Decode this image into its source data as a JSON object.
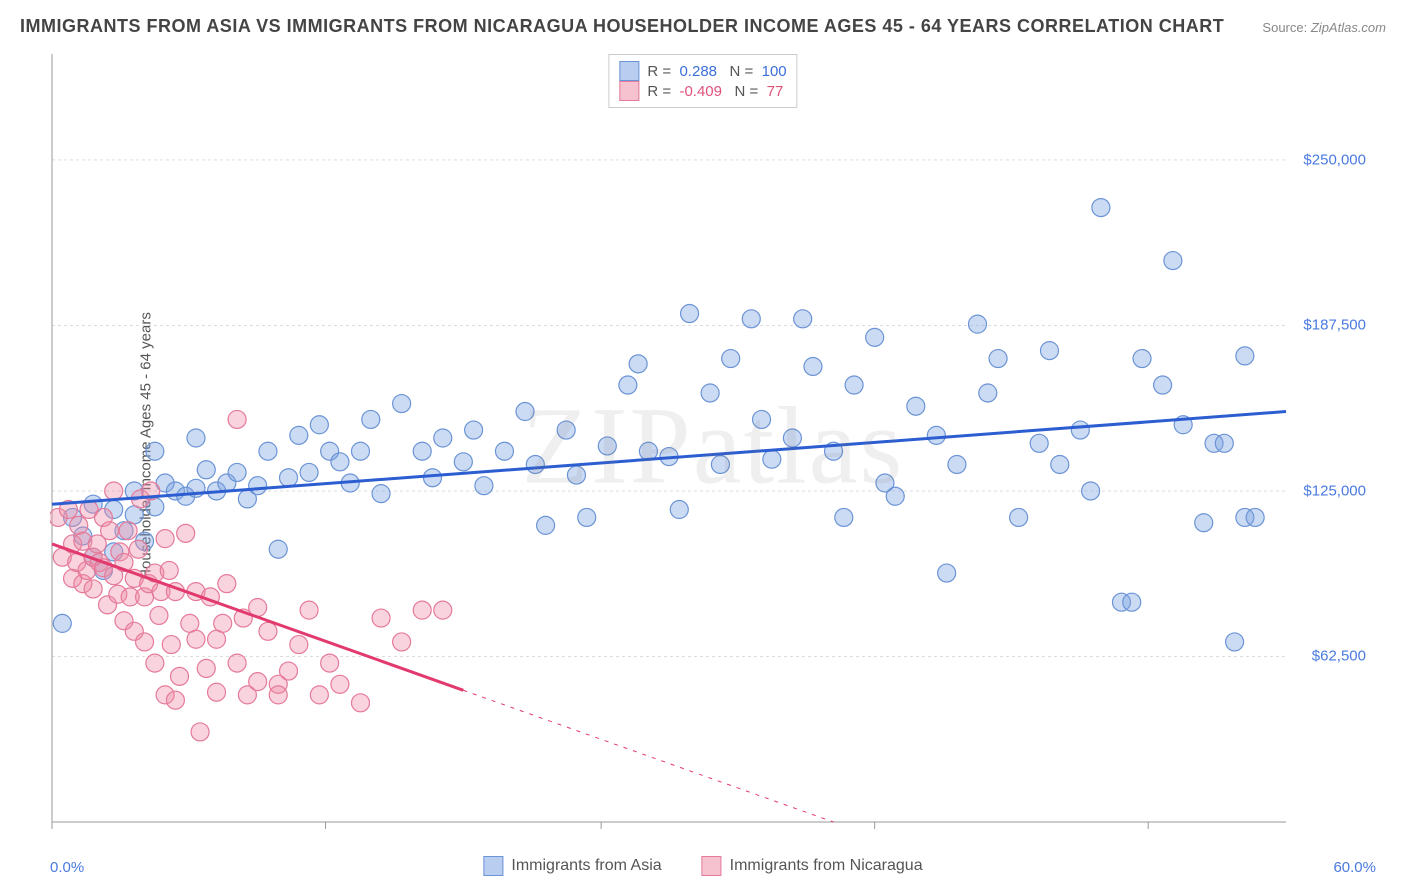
{
  "title": "IMMIGRANTS FROM ASIA VS IMMIGRANTS FROM NICARAGUA HOUSEHOLDER INCOME AGES 45 - 64 YEARS CORRELATION CHART",
  "source_label": "Source:",
  "source_value": "ZipAtlas.com",
  "watermark": "ZIPatlas",
  "ylabel": "Householder Income Ages 45 - 64 years",
  "chart": {
    "type": "scatter",
    "xlim": [
      0,
      60
    ],
    "ylim": [
      0,
      290000
    ],
    "x_min_label": "0.0%",
    "x_max_label": "60.0%",
    "x_ticks": [
      0,
      13.3,
      26.7,
      40,
      53.3
    ],
    "y_ticks": [
      62500,
      125000,
      187500,
      250000
    ],
    "y_tick_labels": [
      "$62,500",
      "$125,000",
      "$187,500",
      "$250,000"
    ],
    "background_color": "#ffffff",
    "grid_color": "#dddddd",
    "axis_color": "#999999",
    "axis_label_color": "#4a7ae0",
    "marker_radius": 9,
    "marker_stroke_width": 1.2,
    "trend_line_width": 3,
    "series": [
      {
        "name": "Immigrants from Asia",
        "fill_color": "rgba(120,160,225,0.38)",
        "stroke_color": "#6b94d6",
        "swatch_fill": "#b8cdef",
        "swatch_stroke": "#6b94d6",
        "R": "0.288",
        "N": "100",
        "stat_color": "#3b6fd9",
        "trend_color": "#2c5ed1",
        "trend": {
          "x1": 0,
          "y1": 120000,
          "x2": 60,
          "y2": 155000,
          "solid_to_x": 60
        },
        "points": [
          [
            0.5,
            75000
          ],
          [
            1,
            115000
          ],
          [
            1.5,
            108000
          ],
          [
            2,
            100000
          ],
          [
            2,
            120000
          ],
          [
            2.5,
            95000
          ],
          [
            3,
            118000
          ],
          [
            3,
            102000
          ],
          [
            3.5,
            110000
          ],
          [
            4,
            116000
          ],
          [
            4,
            125000
          ],
          [
            4.5,
            106000
          ],
          [
            5,
            119000
          ],
          [
            5,
            140000
          ],
          [
            5.5,
            128000
          ],
          [
            6,
            125000
          ],
          [
            6.5,
            123000
          ],
          [
            7,
            126000
          ],
          [
            7,
            145000
          ],
          [
            7.5,
            133000
          ],
          [
            8,
            125000
          ],
          [
            8.5,
            128000
          ],
          [
            9,
            132000
          ],
          [
            9.5,
            122000
          ],
          [
            10,
            127000
          ],
          [
            10.5,
            140000
          ],
          [
            11,
            103000
          ],
          [
            11.5,
            130000
          ],
          [
            12,
            146000
          ],
          [
            12.5,
            132000
          ],
          [
            13,
            150000
          ],
          [
            13.5,
            140000
          ],
          [
            14,
            136000
          ],
          [
            14.5,
            128000
          ],
          [
            15,
            140000
          ],
          [
            15.5,
            152000
          ],
          [
            16,
            124000
          ],
          [
            17,
            158000
          ],
          [
            18,
            140000
          ],
          [
            18.5,
            130000
          ],
          [
            19,
            145000
          ],
          [
            20,
            136000
          ],
          [
            20.5,
            148000
          ],
          [
            21,
            127000
          ],
          [
            22,
            140000
          ],
          [
            23,
            155000
          ],
          [
            23.5,
            135000
          ],
          [
            24,
            112000
          ],
          [
            25,
            148000
          ],
          [
            25.5,
            131000
          ],
          [
            26,
            115000
          ],
          [
            27,
            142000
          ],
          [
            28,
            165000
          ],
          [
            28.5,
            173000
          ],
          [
            29,
            140000
          ],
          [
            30,
            138000
          ],
          [
            30.5,
            118000
          ],
          [
            31,
            192000
          ],
          [
            32,
            162000
          ],
          [
            32.5,
            135000
          ],
          [
            33,
            175000
          ],
          [
            34,
            190000
          ],
          [
            34.5,
            152000
          ],
          [
            35,
            137000
          ],
          [
            36,
            145000
          ],
          [
            36.5,
            190000
          ],
          [
            37,
            172000
          ],
          [
            38,
            140000
          ],
          [
            38.5,
            115000
          ],
          [
            39,
            165000
          ],
          [
            40,
            183000
          ],
          [
            40.5,
            128000
          ],
          [
            41,
            123000
          ],
          [
            42,
            157000
          ],
          [
            43,
            146000
          ],
          [
            43.5,
            94000
          ],
          [
            44,
            135000
          ],
          [
            45,
            188000
          ],
          [
            45.5,
            162000
          ],
          [
            46,
            175000
          ],
          [
            47,
            115000
          ],
          [
            48,
            143000
          ],
          [
            48.5,
            178000
          ],
          [
            49,
            135000
          ],
          [
            50,
            148000
          ],
          [
            50.5,
            125000
          ],
          [
            51,
            232000
          ],
          [
            52,
            83000
          ],
          [
            52.5,
            83000
          ],
          [
            53,
            175000
          ],
          [
            54,
            165000
          ],
          [
            54.5,
            212000
          ],
          [
            55,
            150000
          ],
          [
            56,
            113000
          ],
          [
            56.5,
            143000
          ],
          [
            57,
            143000
          ],
          [
            57.5,
            68000
          ],
          [
            58,
            115000
          ],
          [
            58,
            176000
          ],
          [
            58.5,
            115000
          ]
        ]
      },
      {
        "name": "Immigrants from Nicaragua",
        "fill_color": "rgba(240,140,165,0.38)",
        "stroke_color": "#e57a9a",
        "swatch_fill": "#f6c2d0",
        "swatch_stroke": "#e57a9a",
        "R": "-0.409",
        "N": "77",
        "stat_color": "#e0517a",
        "trend_color": "#e23a6e",
        "trend": {
          "x1": 0,
          "y1": 105000,
          "x2": 38,
          "y2": 0,
          "solid_to_x": 20
        },
        "points": [
          [
            0.3,
            115000
          ],
          [
            0.5,
            100000
          ],
          [
            0.8,
            118000
          ],
          [
            1,
            105000
          ],
          [
            1,
            92000
          ],
          [
            1.2,
            98000
          ],
          [
            1.3,
            112000
          ],
          [
            1.5,
            106000
          ],
          [
            1.5,
            90000
          ],
          [
            1.7,
            95000
          ],
          [
            1.8,
            118000
          ],
          [
            2,
            100000
          ],
          [
            2,
            88000
          ],
          [
            2.2,
            105000
          ],
          [
            2.3,
            98000
          ],
          [
            2.5,
            96000
          ],
          [
            2.5,
            115000
          ],
          [
            2.7,
            82000
          ],
          [
            2.8,
            110000
          ],
          [
            3,
            93000
          ],
          [
            3,
            125000
          ],
          [
            3.2,
            86000
          ],
          [
            3.3,
            102000
          ],
          [
            3.5,
            76000
          ],
          [
            3.5,
            98000
          ],
          [
            3.7,
            110000
          ],
          [
            3.8,
            85000
          ],
          [
            4,
            92000
          ],
          [
            4,
            72000
          ],
          [
            4.2,
            103000
          ],
          [
            4.3,
            122000
          ],
          [
            4.5,
            85000
          ],
          [
            4.5,
            68000
          ],
          [
            4.7,
            90000
          ],
          [
            4.8,
            125000
          ],
          [
            5,
            94000
          ],
          [
            5,
            60000
          ],
          [
            5.2,
            78000
          ],
          [
            5.3,
            87000
          ],
          [
            5.5,
            107000
          ],
          [
            5.5,
            48000
          ],
          [
            5.7,
            95000
          ],
          [
            5.8,
            67000
          ],
          [
            6,
            87000
          ],
          [
            6,
            46000
          ],
          [
            6.2,
            55000
          ],
          [
            6.5,
            109000
          ],
          [
            6.7,
            75000
          ],
          [
            7,
            69000
          ],
          [
            7,
            87000
          ],
          [
            7.2,
            34000
          ],
          [
            7.5,
            58000
          ],
          [
            7.7,
            85000
          ],
          [
            8,
            49000
          ],
          [
            8,
            69000
          ],
          [
            8.3,
            75000
          ],
          [
            8.5,
            90000
          ],
          [
            9,
            60000
          ],
          [
            9,
            152000
          ],
          [
            9.3,
            77000
          ],
          [
            9.5,
            48000
          ],
          [
            10,
            81000
          ],
          [
            10,
            53000
          ],
          [
            10.5,
            72000
          ],
          [
            11,
            52000
          ],
          [
            11,
            48000
          ],
          [
            11.5,
            57000
          ],
          [
            12,
            67000
          ],
          [
            12.5,
            80000
          ],
          [
            13,
            48000
          ],
          [
            13.5,
            60000
          ],
          [
            14,
            52000
          ],
          [
            15,
            45000
          ],
          [
            16,
            77000
          ],
          [
            17,
            68000
          ],
          [
            18,
            80000
          ],
          [
            19,
            80000
          ]
        ]
      }
    ],
    "legend_bottom_labels": [
      "Immigrants from Asia",
      "Immigrants from Nicaragua"
    ]
  }
}
